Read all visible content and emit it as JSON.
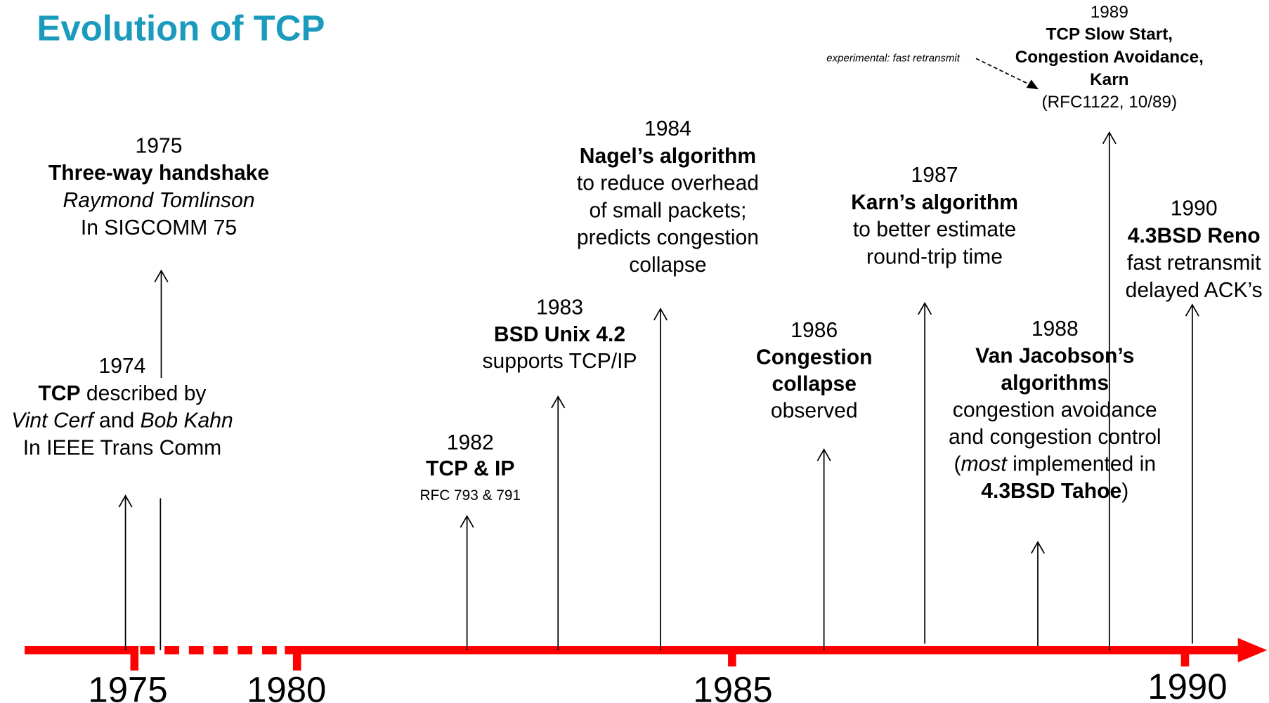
{
  "title": "Evolution of TCP",
  "axis_labels": [
    "1975",
    "1980",
    "1985",
    "1990"
  ],
  "note": "experimental: fast retransmit",
  "events": [
    {
      "year": "1974",
      "lines": [
        [
          "TCP",
          " described by"
        ],
        [
          "Vint Cerf",
          " and ",
          "Bob Kahn"
        ],
        [
          "In IEEE Trans Comm"
        ]
      ]
    },
    {
      "year": "1975",
      "lines": [
        [
          "Three-way handshake"
        ],
        [
          "Raymond Tomlinson"
        ],
        [
          "In SIGCOMM 75"
        ]
      ]
    },
    {
      "year": "1982",
      "lines": [
        [
          "TCP & IP"
        ],
        [
          "RFC 793 & 791"
        ]
      ]
    },
    {
      "year": "1983",
      "lines": [
        [
          "BSD Unix 4.2"
        ],
        [
          "supports TCP/IP"
        ]
      ]
    },
    {
      "year": "1984",
      "lines": [
        [
          "Nagel’s algorithm"
        ],
        [
          "to reduce overhead"
        ],
        [
          "of small packets;"
        ],
        [
          "predicts congestion"
        ],
        [
          "collapse"
        ]
      ]
    },
    {
      "year": "1986",
      "lines": [
        [
          "Congestion"
        ],
        [
          "collapse"
        ],
        [
          "observed"
        ]
      ]
    },
    {
      "year": "1987",
      "lines": [
        [
          "Karn’s algorithm"
        ],
        [
          "to better estimate"
        ],
        [
          "round-trip time"
        ]
      ]
    },
    {
      "year": "1988",
      "lines": [
        [
          "Van Jacobson’s"
        ],
        [
          "algorithms"
        ],
        [
          "congestion avoidance"
        ],
        [
          "and congestion control"
        ],
        [
          "(",
          "most",
          " implemented in"
        ],
        [
          "4.3BSD Tahoe",
          ")"
        ]
      ]
    },
    {
      "year": "1989",
      "lines": [
        [
          "TCP Slow Start,"
        ],
        [
          "Congestion Avoidance,"
        ],
        [
          "Karn"
        ],
        [
          "(RFC1122, 10/89)"
        ]
      ]
    },
    {
      "year": "1990",
      "lines": [
        [
          "4.3BSD Reno"
        ],
        [
          "fast retransmit"
        ],
        [
          "delayed ACK’s"
        ]
      ]
    }
  ]
}
